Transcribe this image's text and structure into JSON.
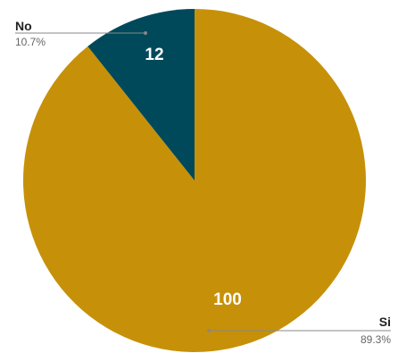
{
  "chart_data": {
    "type": "pie",
    "categories": [
      "Si",
      "No"
    ],
    "values": [
      100,
      12
    ],
    "percent_labels": [
      "89.3%",
      "10.7%"
    ],
    "colors": [
      "#c69109",
      "#00495a"
    ],
    "legend": "callout-labels",
    "value_labels": [
      "100",
      "12"
    ]
  }
}
